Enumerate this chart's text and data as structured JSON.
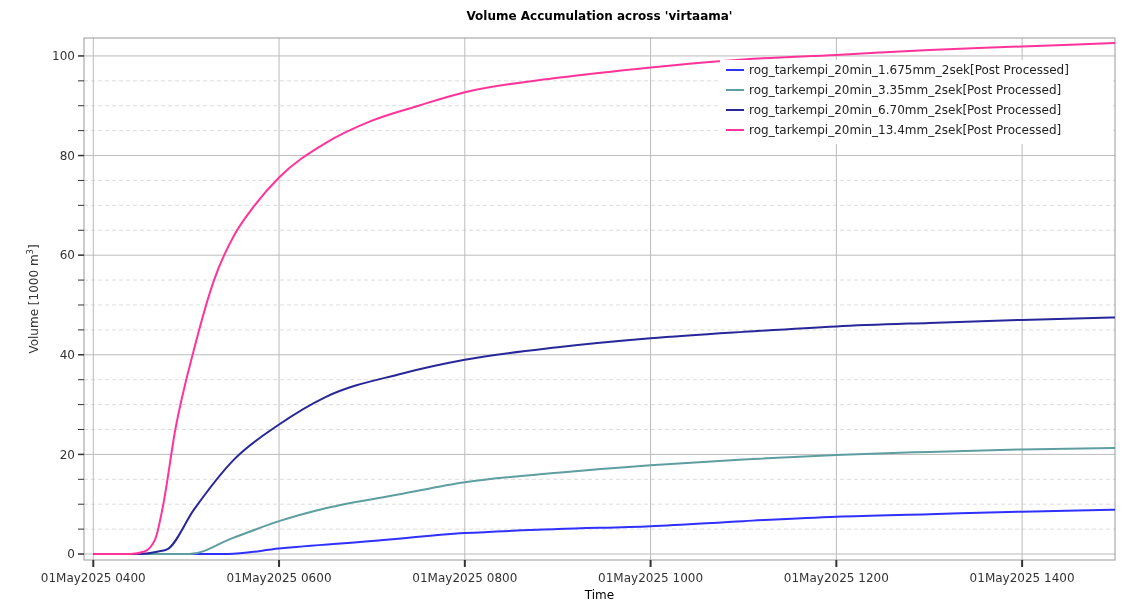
{
  "chart_data": {
    "type": "line",
    "title": "Volume Accumulation across 'virtaama'",
    "xlabel": "Time",
    "ylabel": "Volume [1000 m$^{3}$]",
    "xlim": [
      "2025-05-01T03:54",
      "2025-05-01T15:00"
    ],
    "xticks": [
      {
        "value": "2025-05-01T04:00",
        "label": "01May2025 0400"
      },
      {
        "value": "2025-05-01T06:00",
        "label": "01May2025 0600"
      },
      {
        "value": "2025-05-01T08:00",
        "label": "01May2025 0800"
      },
      {
        "value": "2025-05-01T10:00",
        "label": "01May2025 1000"
      },
      {
        "value": "2025-05-01T12:00",
        "label": "01May2025 1200"
      },
      {
        "value": "2025-05-01T14:00",
        "label": "01May2025 1400"
      }
    ],
    "ylim": [
      -1.2,
      103.6
    ],
    "yticks": [
      0,
      {
        "value": 5,
        "label": null
      },
      {
        "value": 10,
        "label": null
      },
      {
        "value": 15,
        "label": null
      },
      20,
      {
        "value": 25,
        "label": null
      },
      {
        "value": 30,
        "label": null
      },
      {
        "value": 35,
        "label": null
      },
      40,
      {
        "value": 45,
        "label": null
      },
      {
        "value": 50,
        "label": null
      },
      {
        "value": 55,
        "label": null
      },
      60,
      {
        "value": 65,
        "label": null
      },
      {
        "value": 70,
        "label": null
      },
      {
        "value": 75,
        "label": null
      },
      80,
      {
        "value": 85,
        "label": null
      },
      {
        "value": 90,
        "label": null
      },
      {
        "value": 95,
        "label": null
      },
      100
    ],
    "grid": true,
    "legend": "top right",
    "line_style": "solid",
    "marker": "none",
    "series": [
      {
        "name": "rog_tarkempi_20min_1.675mm_2sek[Post Processed]",
        "color": "#3030ff",
        "x": [
          "2025-05-01T04:00",
          "2025-05-01T05:00",
          "2025-05-01T05:27",
          "2025-05-01T06:00",
          "2025-05-01T07:00",
          "2025-05-01T08:00",
          "2025-05-01T09:00",
          "2025-05-01T10:00",
          "2025-05-01T11:00",
          "2025-05-01T12:00",
          "2025-05-01T13:00",
          "2025-05-01T14:00",
          "2025-05-01T15:00"
        ],
        "values": [
          0,
          0,
          0,
          1.1,
          2.6,
          4.2,
          5,
          5.6,
          6.6,
          7.5,
          8,
          8.5,
          8.9
        ]
      },
      {
        "name": "rog_tarkempi_20min_3.35mm_2sek[Post Processed]",
        "color": "#5f9ea0",
        "x": [
          "2025-05-01T04:00",
          "2025-05-01T04:30",
          "2025-05-01T05:02",
          "2025-05-01T05:30",
          "2025-05-01T06:00",
          "2025-05-01T06:30",
          "2025-05-01T07:18",
          "2025-05-01T08:00",
          "2025-05-01T09:00",
          "2025-05-01T10:00",
          "2025-05-01T11:00",
          "2025-05-01T12:00",
          "2025-05-01T13:00",
          "2025-05-01T14:00",
          "2025-05-01T15:00"
        ],
        "values": [
          0,
          0,
          0,
          3.2,
          6.6,
          9.2,
          12,
          14.4,
          16.3,
          17.8,
          19,
          19.9,
          20.5,
          21,
          21.3
        ]
      },
      {
        "name": "rog_tarkempi_20min_6.70mm_2sek[Post Processed]",
        "color": "#27279a",
        "x": [
          "2025-05-01T04:00",
          "2025-05-01T04:30",
          "2025-05-01T04:42",
          "2025-05-01T04:48",
          "2025-05-01T05:05",
          "2025-05-01T05:31",
          "2025-05-01T06:00",
          "2025-05-01T06:30",
          "2025-05-01T07:19",
          "2025-05-01T08:00",
          "2025-05-01T09:00",
          "2025-05-01T10:00",
          "2025-05-01T11:00",
          "2025-05-01T12:00",
          "2025-05-01T13:00",
          "2025-05-01T14:00",
          "2025-05-01T15:00"
        ],
        "values": [
          0,
          0,
          0.5,
          1,
          8.9,
          19,
          26,
          31.5,
          36.2,
          39,
          41.5,
          43.3,
          44.6,
          45.7,
          46.4,
          47,
          47.5
        ]
      },
      {
        "name": "rog_tarkempi_20min_13.4mm_2sek[Post Processed]",
        "color": "#ff3399",
        "x": [
          "2025-05-01T04:00",
          "2025-05-01T04:24",
          "2025-05-01T04:33",
          "2025-05-01T04:40",
          "2025-05-01T04:45",
          "2025-05-01T04:53",
          "2025-05-01T05:05",
          "2025-05-01T05:18",
          "2025-05-01T05:31",
          "2025-05-01T05:43",
          "2025-05-01T06:00",
          "2025-05-01T06:30",
          "2025-05-01T07:00",
          "2025-05-01T07:30",
          "2025-05-01T08:00",
          "2025-05-01T09:00",
          "2025-05-01T10:00",
          "2025-05-01T11:00",
          "2025-05-01T12:00",
          "2025-05-01T13:00",
          "2025-05-01T14:00",
          "2025-05-01T15:00"
        ],
        "values": [
          0,
          0,
          0.5,
          3,
          9.6,
          25,
          41,
          55,
          64,
          69.5,
          75.6,
          82.5,
          87,
          90,
          92.7,
          95.6,
          97.7,
          99.3,
          100.2,
          101.2,
          101.9,
          102.6
        ]
      }
    ]
  }
}
